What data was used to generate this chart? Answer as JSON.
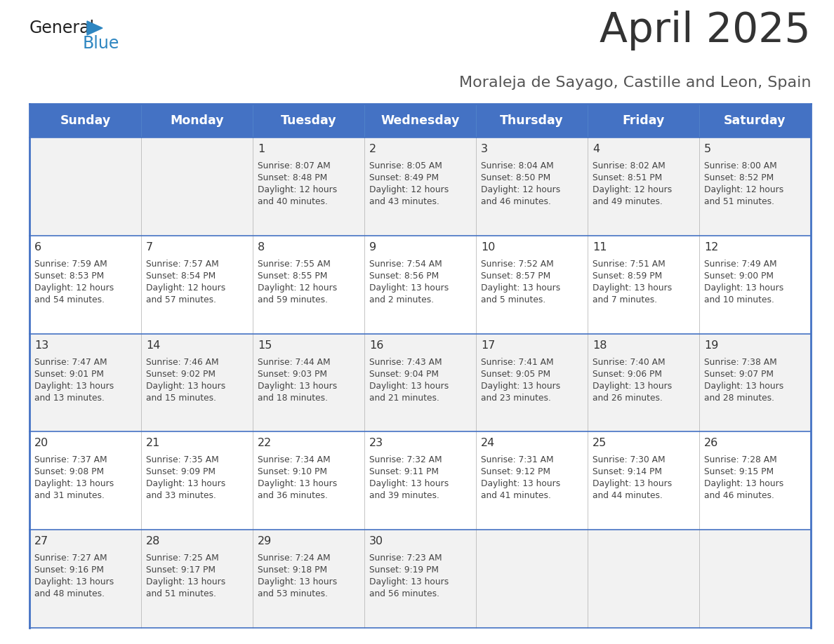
{
  "title": "April 2025",
  "subtitle": "Moraleja de Sayago, Castille and Leon, Spain",
  "header_bg_color": "#4472C4",
  "header_text_color": "#FFFFFF",
  "row_bg_colors": [
    "#F2F2F2",
    "#FFFFFF"
  ],
  "border_color": "#4472C4",
  "title_color": "#333333",
  "subtitle_color": "#555555",
  "day_headers": [
    "Sunday",
    "Monday",
    "Tuesday",
    "Wednesday",
    "Thursday",
    "Friday",
    "Saturday"
  ],
  "cell_text_color": "#444444",
  "day_number_color": "#333333",
  "calendar_data": [
    [
      {
        "day": "",
        "sunrise": "",
        "sunset": "",
        "daylight_h": "",
        "daylight_m": ""
      },
      {
        "day": "",
        "sunrise": "",
        "sunset": "",
        "daylight_h": "",
        "daylight_m": ""
      },
      {
        "day": "1",
        "sunrise": "8:07 AM",
        "sunset": "8:48 PM",
        "daylight_h": "12",
        "daylight_m": "40"
      },
      {
        "day": "2",
        "sunrise": "8:05 AM",
        "sunset": "8:49 PM",
        "daylight_h": "12",
        "daylight_m": "43"
      },
      {
        "day": "3",
        "sunrise": "8:04 AM",
        "sunset": "8:50 PM",
        "daylight_h": "12",
        "daylight_m": "46"
      },
      {
        "day": "4",
        "sunrise": "8:02 AM",
        "sunset": "8:51 PM",
        "daylight_h": "12",
        "daylight_m": "49"
      },
      {
        "day": "5",
        "sunrise": "8:00 AM",
        "sunset": "8:52 PM",
        "daylight_h": "12",
        "daylight_m": "51"
      }
    ],
    [
      {
        "day": "6",
        "sunrise": "7:59 AM",
        "sunset": "8:53 PM",
        "daylight_h": "12",
        "daylight_m": "54"
      },
      {
        "day": "7",
        "sunrise": "7:57 AM",
        "sunset": "8:54 PM",
        "daylight_h": "12",
        "daylight_m": "57"
      },
      {
        "day": "8",
        "sunrise": "7:55 AM",
        "sunset": "8:55 PM",
        "daylight_h": "12",
        "daylight_m": "59"
      },
      {
        "day": "9",
        "sunrise": "7:54 AM",
        "sunset": "8:56 PM",
        "daylight_h": "13",
        "daylight_m": "2"
      },
      {
        "day": "10",
        "sunrise": "7:52 AM",
        "sunset": "8:57 PM",
        "daylight_h": "13",
        "daylight_m": "5"
      },
      {
        "day": "11",
        "sunrise": "7:51 AM",
        "sunset": "8:59 PM",
        "daylight_h": "13",
        "daylight_m": "7"
      },
      {
        "day": "12",
        "sunrise": "7:49 AM",
        "sunset": "9:00 PM",
        "daylight_h": "13",
        "daylight_m": "10"
      }
    ],
    [
      {
        "day": "13",
        "sunrise": "7:47 AM",
        "sunset": "9:01 PM",
        "daylight_h": "13",
        "daylight_m": "13"
      },
      {
        "day": "14",
        "sunrise": "7:46 AM",
        "sunset": "9:02 PM",
        "daylight_h": "13",
        "daylight_m": "15"
      },
      {
        "day": "15",
        "sunrise": "7:44 AM",
        "sunset": "9:03 PM",
        "daylight_h": "13",
        "daylight_m": "18"
      },
      {
        "day": "16",
        "sunrise": "7:43 AM",
        "sunset": "9:04 PM",
        "daylight_h": "13",
        "daylight_m": "21"
      },
      {
        "day": "17",
        "sunrise": "7:41 AM",
        "sunset": "9:05 PM",
        "daylight_h": "13",
        "daylight_m": "23"
      },
      {
        "day": "18",
        "sunrise": "7:40 AM",
        "sunset": "9:06 PM",
        "daylight_h": "13",
        "daylight_m": "26"
      },
      {
        "day": "19",
        "sunrise": "7:38 AM",
        "sunset": "9:07 PM",
        "daylight_h": "13",
        "daylight_m": "28"
      }
    ],
    [
      {
        "day": "20",
        "sunrise": "7:37 AM",
        "sunset": "9:08 PM",
        "daylight_h": "13",
        "daylight_m": "31"
      },
      {
        "day": "21",
        "sunrise": "7:35 AM",
        "sunset": "9:09 PM",
        "daylight_h": "13",
        "daylight_m": "33"
      },
      {
        "day": "22",
        "sunrise": "7:34 AM",
        "sunset": "9:10 PM",
        "daylight_h": "13",
        "daylight_m": "36"
      },
      {
        "day": "23",
        "sunrise": "7:32 AM",
        "sunset": "9:11 PM",
        "daylight_h": "13",
        "daylight_m": "39"
      },
      {
        "day": "24",
        "sunrise": "7:31 AM",
        "sunset": "9:12 PM",
        "daylight_h": "13",
        "daylight_m": "41"
      },
      {
        "day": "25",
        "sunrise": "7:30 AM",
        "sunset": "9:14 PM",
        "daylight_h": "13",
        "daylight_m": "44"
      },
      {
        "day": "26",
        "sunrise": "7:28 AM",
        "sunset": "9:15 PM",
        "daylight_h": "13",
        "daylight_m": "46"
      }
    ],
    [
      {
        "day": "27",
        "sunrise": "7:27 AM",
        "sunset": "9:16 PM",
        "daylight_h": "13",
        "daylight_m": "48"
      },
      {
        "day": "28",
        "sunrise": "7:25 AM",
        "sunset": "9:17 PM",
        "daylight_h": "13",
        "daylight_m": "51"
      },
      {
        "day": "29",
        "sunrise": "7:24 AM",
        "sunset": "9:18 PM",
        "daylight_h": "13",
        "daylight_m": "53"
      },
      {
        "day": "30",
        "sunrise": "7:23 AM",
        "sunset": "9:19 PM",
        "daylight_h": "13",
        "daylight_m": "56"
      },
      {
        "day": "",
        "sunrise": "",
        "sunset": "",
        "daylight_h": "",
        "daylight_m": ""
      },
      {
        "day": "",
        "sunrise": "",
        "sunset": "",
        "daylight_h": "",
        "daylight_m": ""
      },
      {
        "day": "",
        "sunrise": "",
        "sunset": "",
        "daylight_h": "",
        "daylight_m": ""
      }
    ]
  ],
  "logo_text_general": "General",
  "logo_text_blue": "Blue",
  "logo_color_general": "#222222",
  "logo_color_blue": "#2E86C1",
  "logo_triangle_color": "#2E86C1"
}
